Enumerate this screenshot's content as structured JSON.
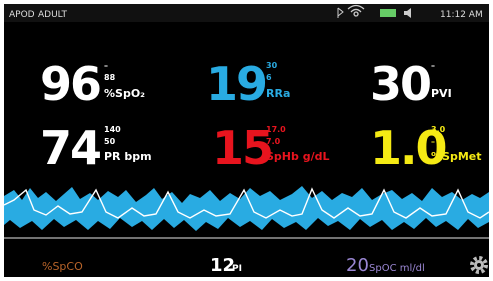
{
  "status_bar": {
    "mode": "APOD",
    "patient": "ADULT",
    "time": "11:12 AM"
  },
  "parameters": [
    {
      "value": "96",
      "high": "–",
      "low": "88",
      "label": "%SpO₂"
    },
    {
      "value": "19",
      "high": "30",
      "low": "6",
      "label": "RRa"
    },
    {
      "value": "30",
      "high": "–",
      "label": "PVI"
    },
    {
      "value": "74",
      "high": "140",
      "low": "50",
      "label": "PR bpm"
    },
    {
      "value": "15",
      "high": "17.0",
      "low": "7.0",
      "label": "SpHb g/dL"
    },
    {
      "value": "1.0",
      "high": "3.0",
      "low": "–",
      "label": "%SpMet"
    }
  ],
  "bottom_bar": {
    "spco": {
      "label": "%SpCO"
    },
    "pi": {
      "value": "12",
      "label": "PI"
    },
    "spoc": {
      "value": "20",
      "label": "SpOC ml/dl"
    }
  }
}
